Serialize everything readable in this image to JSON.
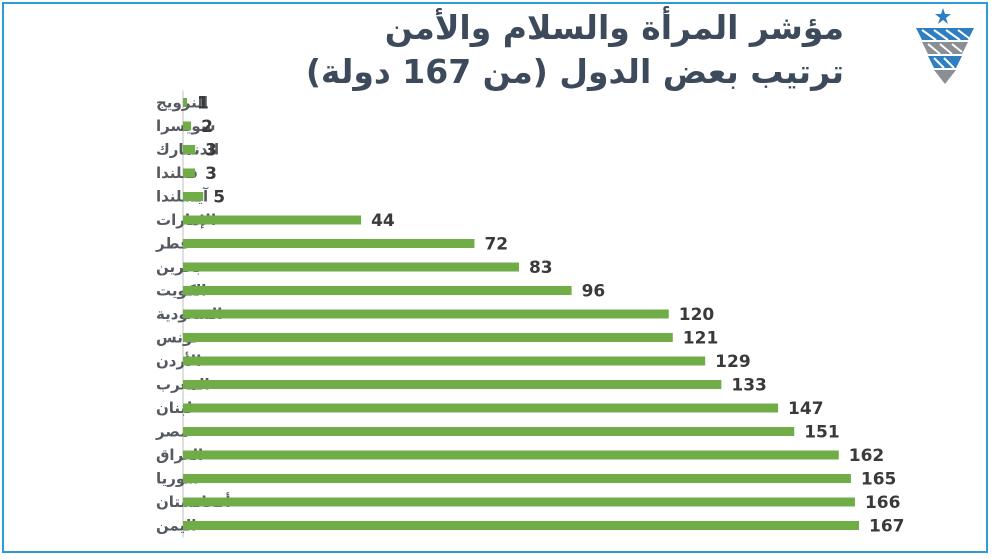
{
  "title": {
    "line1": "مؤشر المرأة والسلام والأمن",
    "line2": "ترتيب بعض الدول (من 167 دولة)"
  },
  "logo": {
    "icon": "petra-news-agency-logo-icon",
    "colors": [
      "#2e7fc1",
      "#8a8f96"
    ]
  },
  "colors": {
    "bar": "#70ad47",
    "frame": "#2e9bd6",
    "title": "#3d4a5c",
    "axis": "#bfbfbf"
  },
  "chart_data": {
    "type": "bar",
    "orientation": "horizontal",
    "categories": [
      "النرويج",
      "سويسرا",
      "الدنمارك",
      "فنلندا",
      "آيسلندا",
      "الإمارات",
      "قطر",
      "بحرين",
      "الكويت",
      "السعودية",
      "تونس",
      "الأردن",
      "المغرب",
      "لبنان",
      "مصر",
      "العراق",
      "سوريا",
      "أفغانستان",
      "اليمن"
    ],
    "values": [
      1,
      2,
      3,
      3,
      5,
      44,
      72,
      83,
      96,
      120,
      121,
      129,
      133,
      147,
      151,
      162,
      165,
      166,
      167
    ],
    "xlim": [
      0,
      167
    ],
    "data_labels": true,
    "grid": false,
    "legend": "none"
  }
}
